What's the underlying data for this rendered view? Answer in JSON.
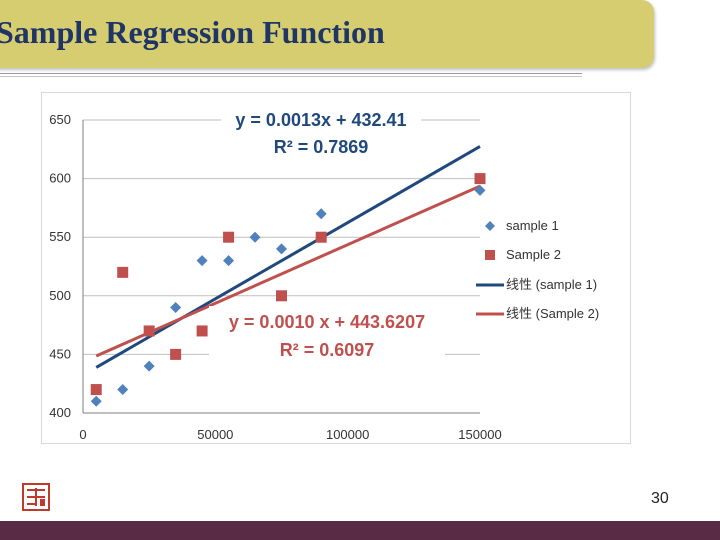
{
  "slide": {
    "title": "Sample Regression Function",
    "page_number": "30"
  },
  "colors": {
    "title_bar": "#d6cd70",
    "title_text": "#1f3566",
    "series1": "#4f81bd",
    "series2": "#c0504d",
    "trend1": "#1f497d",
    "trend2": "#c0504d",
    "footer": "#5a2b45"
  },
  "chart_data": {
    "type": "scatter",
    "xlim": [
      0,
      150000
    ],
    "ylim": [
      400,
      650
    ],
    "x_ticks": [
      "0",
      "50000",
      "100000",
      "150000"
    ],
    "y_ticks": [
      "400",
      "450",
      "500",
      "550",
      "600",
      "650"
    ],
    "grid": "horizontal",
    "legend": "right",
    "series": [
      {
        "name": "sample 1",
        "marker": "diamond",
        "points": [
          [
            5000,
            410
          ],
          [
            15000,
            420
          ],
          [
            25000,
            440
          ],
          [
            35000,
            490
          ],
          [
            45000,
            530
          ],
          [
            55000,
            530
          ],
          [
            65000,
            550
          ],
          [
            75000,
            540
          ],
          [
            90000,
            570
          ],
          [
            150000,
            590
          ]
        ]
      },
      {
        "name": "Sample 2",
        "marker": "square",
        "points": [
          [
            5000,
            420
          ],
          [
            15000,
            520
          ],
          [
            25000,
            470
          ],
          [
            35000,
            450
          ],
          [
            45000,
            470
          ],
          [
            55000,
            550
          ],
          [
            75000,
            500
          ],
          [
            90000,
            550
          ],
          [
            150000,
            600
          ]
        ]
      }
    ],
    "trendlines": [
      {
        "name": "线性 (sample 1)",
        "slope": 0.0013,
        "intercept": 432.41,
        "x_range": [
          5000,
          150000
        ],
        "equation": "y = 0.0013x + 432.41",
        "r2": "R² = 0.7869"
      },
      {
        "name": "线性 (Sample 2)",
        "slope": 0.001,
        "intercept": 443.6207,
        "x_range": [
          5000,
          150000
        ],
        "equation": "y = 0.0010 x + 443.6207",
        "r2": "R² = 0.6097"
      }
    ]
  }
}
